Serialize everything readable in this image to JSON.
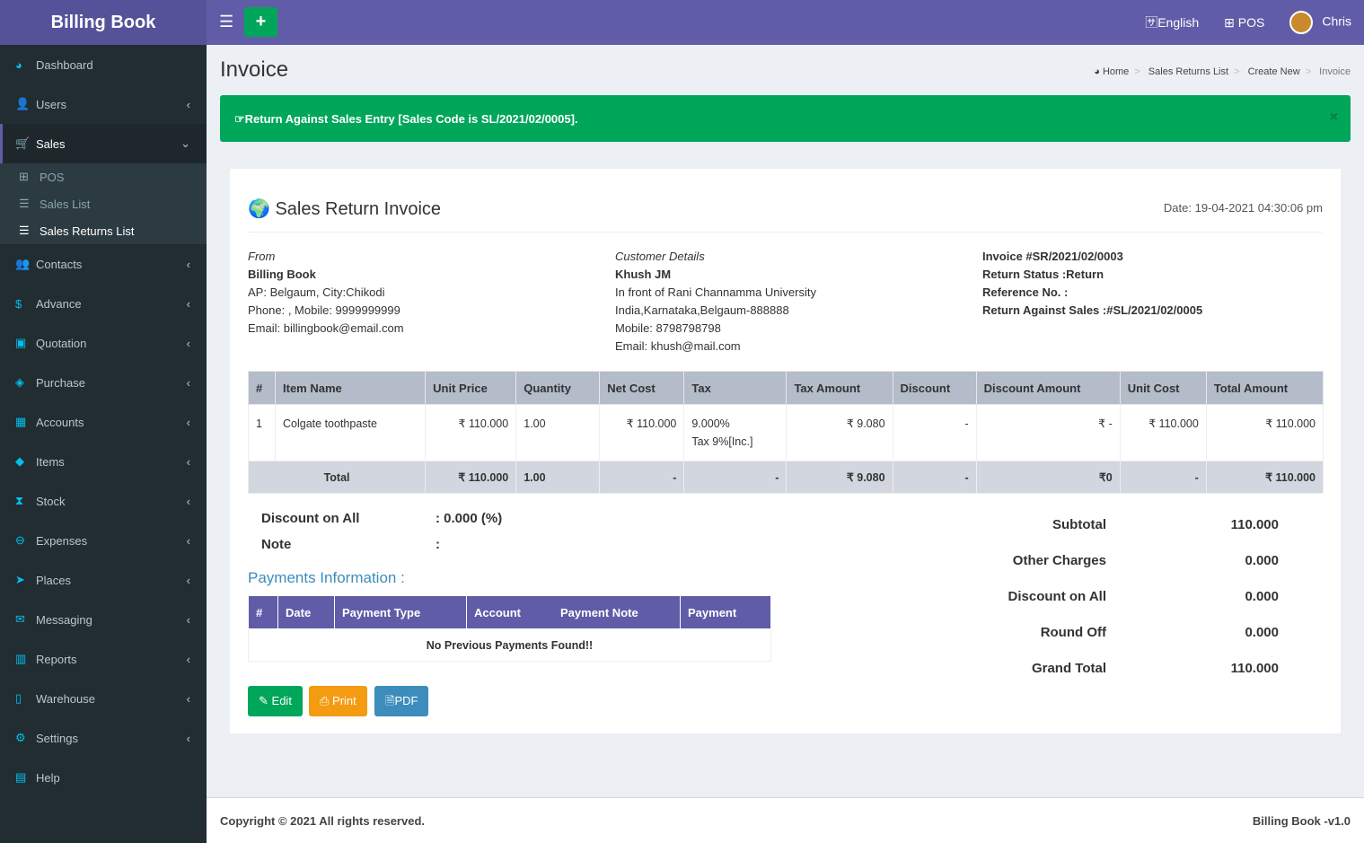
{
  "app": {
    "title": "Billing Book"
  },
  "topbar": {
    "menu_icon": "hamburger-icon",
    "add_icon": "plus-icon",
    "language": "English",
    "pos": "POS",
    "user": "Chris"
  },
  "sidebar": {
    "items": [
      {
        "label": "Dashboard",
        "icon": "dashboard-icon",
        "glyph": "◕"
      },
      {
        "label": "Users",
        "icon": "user-plus-icon",
        "glyph": "👤",
        "chev": "‹"
      },
      {
        "label": "Sales",
        "icon": "cart-icon",
        "glyph": "🛒",
        "chev": "⌄",
        "active": true,
        "sub": [
          {
            "label": "POS",
            "icon": "plus-square-icon",
            "glyph": "⊞"
          },
          {
            "label": "Sales List",
            "icon": "list-icon",
            "glyph": "☰"
          },
          {
            "label": "Sales Returns List",
            "icon": "list-icon",
            "glyph": "☰",
            "active": true
          }
        ]
      },
      {
        "label": "Contacts",
        "icon": "users-icon",
        "glyph": "👥",
        "chev": "‹"
      },
      {
        "label": "Advance",
        "icon": "dollar-icon",
        "glyph": "$",
        "chev": "‹"
      },
      {
        "label": "Quotation",
        "icon": "calendar-plus-icon",
        "glyph": "▣",
        "chev": "‹"
      },
      {
        "label": "Purchase",
        "icon": "cube-icon",
        "glyph": "◈",
        "chev": "‹"
      },
      {
        "label": "Accounts",
        "icon": "grid-icon",
        "glyph": "▦",
        "chev": "‹"
      },
      {
        "label": "Items",
        "icon": "cubes-icon",
        "glyph": "◆",
        "chev": "‹"
      },
      {
        "label": "Stock",
        "icon": "hourglass-icon",
        "glyph": "⧗",
        "chev": "‹"
      },
      {
        "label": "Expenses",
        "icon": "minus-circle-icon",
        "glyph": "⊖",
        "chev": "‹"
      },
      {
        "label": "Places",
        "icon": "paper-plane-icon",
        "glyph": "➤",
        "chev": "‹"
      },
      {
        "label": "Messaging",
        "icon": "envelope-icon",
        "glyph": "✉",
        "chev": "‹"
      },
      {
        "label": "Reports",
        "icon": "bar-chart-icon",
        "glyph": "▥",
        "chev": "‹"
      },
      {
        "label": "Warehouse",
        "icon": "building-icon",
        "glyph": "▯",
        "chev": "‹"
      },
      {
        "label": "Settings",
        "icon": "cogs-icon",
        "glyph": "⚙",
        "chev": "‹"
      },
      {
        "label": "Help",
        "icon": "book-icon",
        "glyph": "▤"
      }
    ]
  },
  "page": {
    "title": "Invoice",
    "breadcrumb": [
      "Home",
      "Sales Returns List",
      "Create New",
      "Invoice"
    ]
  },
  "alert": {
    "text": "Return Against Sales Entry [Sales Code is SL/2021/02/0005].",
    "close": "×"
  },
  "invoice": {
    "title": "Sales Return Invoice",
    "date": "Date: 19-04-2021 04:30:06 pm",
    "from": {
      "label": "From",
      "name": "Billing Book",
      "lines": [
        "AP: Belgaum, City:Chikodi",
        "Phone: , Mobile: 9999999999",
        "Email: billingbook@email.com"
      ]
    },
    "customer": {
      "label": "Customer Details",
      "name": "Khush JM",
      "lines": [
        "In front of Rani Channamma University",
        "India,Karnataka,Belgaum-888888",
        "Mobile: 8798798798",
        "Email: khush@mail.com"
      ]
    },
    "meta": [
      "Invoice #SR/2021/02/0003",
      "Return Status :Return",
      "Reference No. :",
      "Return Against Sales :#SL/2021/02/0005"
    ],
    "columns": [
      "#",
      "Item Name",
      "Unit Price",
      "Quantity",
      "Net Cost",
      "Tax",
      "Tax Amount",
      "Discount",
      "Discount Amount",
      "Unit Cost",
      "Total Amount"
    ],
    "rows": [
      [
        "1",
        "Colgate toothpaste",
        "₹ 110.000",
        "1.00",
        "₹ 110.000",
        "9.000%\nTax 9%[Inc.]",
        "₹ 9.080",
        "-",
        "₹ -",
        "₹ 110.000",
        "₹ 110.000"
      ]
    ],
    "totals": [
      "Total",
      "₹ 110.000",
      "1.00",
      "-",
      "-",
      "₹ 9.080",
      "-",
      "₹0",
      "-",
      "₹ 110.000"
    ],
    "discount_label": "Discount on All",
    "discount_value": ": 0.000 (%)",
    "note_label": "Note",
    "note_value": ":",
    "payments_title": "Payments Information :",
    "payment_columns": [
      "#",
      "Date",
      "Payment Type",
      "Account",
      "Payment Note",
      "Payment"
    ],
    "no_payments": "No Previous Payments Found!!",
    "summary": [
      [
        "Subtotal",
        "110.000"
      ],
      [
        "Other Charges",
        "0.000"
      ],
      [
        "Discount on All",
        "0.000"
      ],
      [
        "Round Off",
        "0.000"
      ],
      [
        "Grand Total",
        "110.000"
      ]
    ],
    "buttons": {
      "edit": "Edit",
      "print": "Print",
      "pdf": "PDF"
    }
  },
  "footer": {
    "copyright": "Copyright © 2021 All rights reserved.",
    "version": "Billing Book -v1.0"
  }
}
